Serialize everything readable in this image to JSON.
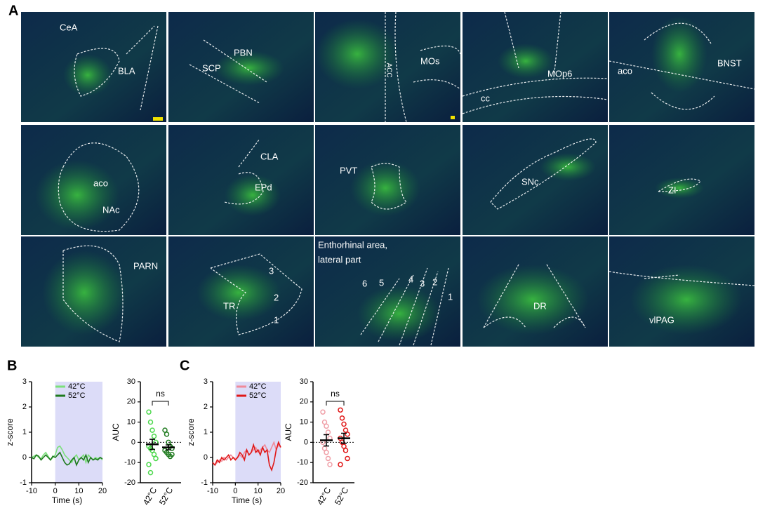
{
  "figure": {
    "panel_labels": [
      "A",
      "B",
      "C"
    ],
    "tiles": [
      {
        "labels": [
          "CeA",
          "BLA"
        ]
      },
      {
        "labels": [
          "PBN",
          "SCP"
        ]
      },
      {
        "labels": [
          "ACC",
          "MOs"
        ]
      },
      {
        "labels": [
          "MOp6",
          "cc"
        ]
      },
      {
        "labels": [
          "aco",
          "BNST"
        ]
      },
      {
        "labels": [
          "aco",
          "NAc"
        ]
      },
      {
        "labels": [
          "CLA",
          "EPd"
        ]
      },
      {
        "labels": [
          "PVT"
        ]
      },
      {
        "labels": [
          "SNc"
        ]
      },
      {
        "labels": [
          "ZI"
        ]
      },
      {
        "labels": [
          "PARN"
        ]
      },
      {
        "labels": [
          "TR",
          "3",
          "2",
          "1"
        ]
      },
      {
        "labels": [
          "Enthorhinal area,",
          "lateral part",
          "6",
          "5",
          "4",
          "3",
          "2",
          "1"
        ]
      },
      {
        "labels": [
          "DR"
        ]
      },
      {
        "labels": [
          "vlPAG"
        ]
      }
    ]
  },
  "chart_data": [
    {
      "type": "line",
      "xlabel": "Time (s)",
      "ylabel": "z-score",
      "xlim": [
        -10,
        20
      ],
      "ylim": [
        -1,
        3
      ],
      "xticks": [
        -10,
        0,
        10,
        20
      ],
      "yticks": [
        -1,
        0,
        1,
        2,
        3
      ],
      "shaded_region": [
        0,
        20
      ],
      "shade_color": "#dcdcf8",
      "x": [
        -10,
        -9,
        -8,
        -7,
        -6,
        -5,
        -4,
        -3,
        -2,
        -1,
        0,
        1,
        2,
        3,
        4,
        5,
        6,
        7,
        8,
        9,
        10,
        11,
        12,
        13,
        14,
        15,
        16,
        17,
        18,
        19,
        20
      ],
      "series": [
        {
          "name": "42°C",
          "color": "#7be07b",
          "values": [
            0,
            0.05,
            0.1,
            0,
            -0.05,
            0.1,
            0.2,
            0.05,
            -0.1,
            0,
            0.1,
            0.4,
            0.45,
            0.3,
            0.1,
            0,
            -0.1,
            -0.2,
            0,
            0.1,
            -0.1,
            0,
            0.1,
            -0.2,
            0.1,
            0,
            -0.1,
            0,
            -0.05,
            0,
            -0.1
          ]
        },
        {
          "name": "52°C",
          "color": "#1e7a1e",
          "values": [
            0,
            -0.05,
            0.1,
            0.05,
            -0.1,
            0,
            0.1,
            0,
            -0.1,
            0.05,
            0,
            0.1,
            0.2,
            0,
            -0.2,
            -0.3,
            -0.25,
            -0.1,
            0,
            -0.3,
            -0.1,
            0,
            -0.1,
            0.1,
            -0.2,
            0,
            -0.1,
            -0.05,
            -0.1,
            0,
            -0.05
          ]
        }
      ]
    },
    {
      "type": "scatter",
      "ylabel": "AUC",
      "categories": [
        "42°C",
        "52°C"
      ],
      "ylim": [
        -20,
        30
      ],
      "yticks": [
        -20,
        -10,
        0,
        10,
        20,
        30
      ],
      "annotation": "ns",
      "series": [
        {
          "color": "#4cd84c",
          "values": [
            15,
            10,
            6,
            3,
            0,
            -2,
            -3,
            -4,
            -6,
            -8,
            -11,
            -15
          ],
          "mean": -1,
          "sem": 2.5
        },
        {
          "color": "#1e7a1e",
          "values": [
            6,
            4,
            0,
            -2,
            -3,
            -4,
            -5,
            -6,
            -7,
            -6
          ],
          "mean": -2.5,
          "sem": 1.2
        }
      ]
    },
    {
      "type": "line",
      "xlabel": "Time (s)",
      "ylabel": "z-score",
      "xlim": [
        -10,
        20
      ],
      "ylim": [
        -1,
        3
      ],
      "xticks": [
        -10,
        0,
        10,
        20
      ],
      "yticks": [
        -1,
        0,
        1,
        2,
        3
      ],
      "shaded_region": [
        0,
        20
      ],
      "shade_color": "#dcdcf8",
      "x": [
        -10,
        -9,
        -8,
        -7,
        -6,
        -5,
        -4,
        -3,
        -2,
        -1,
        0,
        1,
        2,
        3,
        4,
        5,
        6,
        7,
        8,
        9,
        10,
        11,
        12,
        13,
        14,
        15,
        16,
        17,
        18,
        19,
        20
      ],
      "series": [
        {
          "name": "42°C",
          "color": "#f08a9a",
          "values": [
            -0.2,
            -0.3,
            -0.2,
            -0.1,
            -0.15,
            0,
            -0.1,
            0,
            0.1,
            0,
            -0.05,
            0,
            0.1,
            0,
            0.2,
            0.3,
            0.1,
            0.2,
            0.3,
            0.4,
            0.2,
            0.3,
            0.4,
            0.5,
            0.3,
            0.2,
            0.4,
            0.6,
            0.3,
            0.5,
            0.4
          ]
        },
        {
          "name": "52°C",
          "color": "#e01818",
          "values": [
            -0.2,
            -0.3,
            -0.1,
            -0.2,
            0,
            -0.1,
            0,
            0.1,
            -0.1,
            0,
            -0.1,
            0,
            0.2,
            0.1,
            -0.1,
            0.3,
            0.1,
            0.2,
            0.5,
            0.2,
            0.3,
            0.1,
            0.4,
            0.2,
            0.3,
            -0.3,
            -0.5,
            -0.2,
            0.3,
            0.6,
            0.4
          ]
        }
      ]
    },
    {
      "type": "scatter",
      "ylabel": "AUC",
      "categories": [
        "42°C",
        "52°C"
      ],
      "ylim": [
        -20,
        30
      ],
      "yticks": [
        -20,
        -10,
        0,
        10,
        20,
        30
      ],
      "annotation": "ns",
      "series": [
        {
          "color": "#f0a0a8",
          "values": [
            15,
            10,
            8,
            5,
            2,
            0,
            -3,
            -5,
            -8,
            -11
          ],
          "mean": 1,
          "sem": 2.8
        },
        {
          "color": "#e01818",
          "values": [
            16,
            12,
            9,
            6,
            4,
            2,
            0,
            -2,
            -4,
            -8,
            -11
          ],
          "mean": 2,
          "sem": 2.5
        }
      ]
    }
  ]
}
